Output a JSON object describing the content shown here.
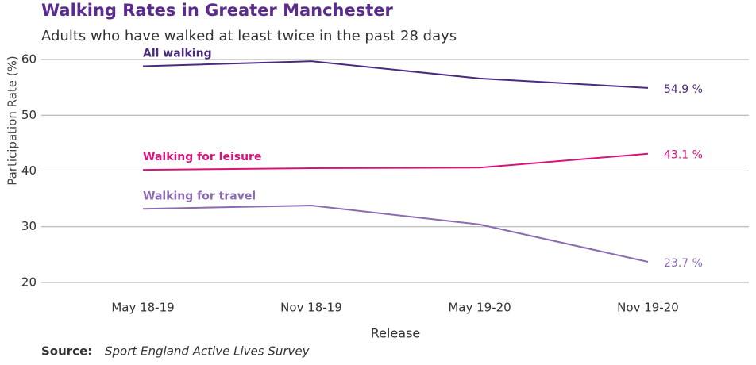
{
  "chart_data": {
    "type": "line",
    "title": "Walking Rates in Greater Manchester",
    "subtitle": "Adults who have walked at least twice in the past 28 days",
    "x_label": "Release",
    "y_label": "Participation Rate (%)",
    "categories": [
      "May 18-19",
      "Nov 18-19",
      "May 19-20",
      "Nov 19-20"
    ],
    "series": [
      {
        "name": "All walking",
        "color": "#4b2a7e",
        "values": [
          58.8,
          59.7,
          56.6,
          54.9
        ],
        "value_labels": [
          null,
          null,
          null,
          "54.9 %"
        ]
      },
      {
        "name": "Walking for leisure",
        "color": "#d6157c",
        "values": [
          40.2,
          40.5,
          40.6,
          43.1
        ],
        "value_labels": [
          null,
          null,
          null,
          "43.1 %"
        ]
      },
      {
        "name": "Walking for travel",
        "color": "#8c6bb1",
        "values": [
          33.2,
          33.8,
          30.4,
          23.7
        ],
        "value_labels": [
          null,
          null,
          null,
          "23.7 %"
        ]
      }
    ],
    "ylim": [
      18,
      62
    ],
    "yticks": [
      20,
      30,
      40,
      50,
      60
    ],
    "grid": true,
    "source_label": "Source:",
    "source": "Sport England Active Lives Survey"
  }
}
